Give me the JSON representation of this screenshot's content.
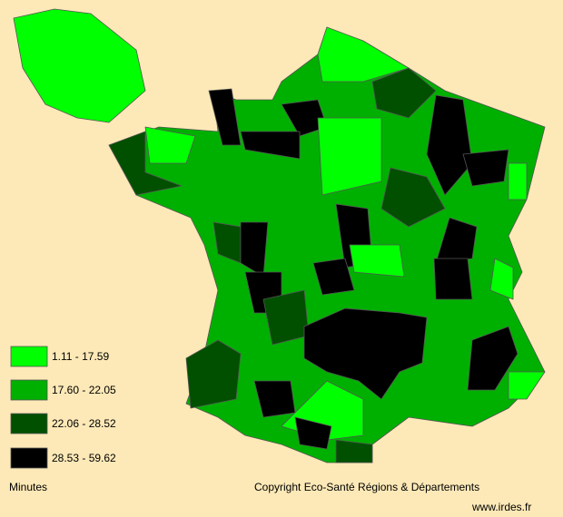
{
  "legend": {
    "title": "Minutes",
    "items": [
      {
        "label": "1.11 - 17.59",
        "color": "#00ff00"
      },
      {
        "label": "17.60 - 22.05",
        "color": "#00b000"
      },
      {
        "label": "22.06 - 28.52",
        "color": "#005000"
      },
      {
        "label": "28.53 - 59.62",
        "color": "#000000"
      }
    ]
  },
  "copyright": "Copyright Eco-Santé Régions & Départements",
  "url": "www.irdes.fr"
}
